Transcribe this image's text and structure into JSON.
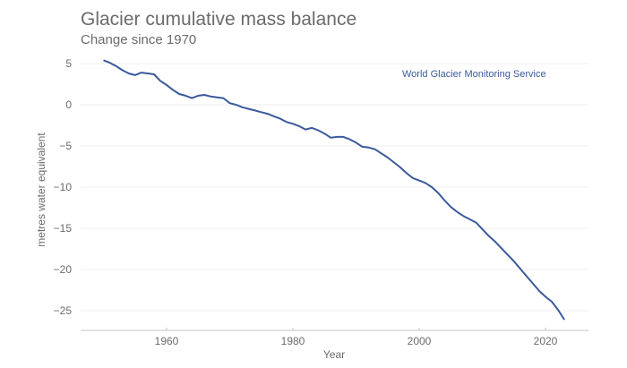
{
  "chart_data": {
    "type": "line",
    "title": "Glacier cumulative mass balance",
    "subtitle": "Change since 1970",
    "xlabel": "Year",
    "ylabel": "metres water equivalent",
    "annotation": "World Glacier Monitoring Service",
    "xlim": [
      1948,
      2027
    ],
    "ylim": [
      -28,
      6
    ],
    "x_ticks": [
      1960,
      1980,
      2000,
      2020
    ],
    "y_ticks": [
      5,
      0,
      -5,
      -10,
      -15,
      -20,
      -25
    ],
    "y_tick_labels": [
      "5",
      "0",
      "−5",
      "−10",
      "−15",
      "−20",
      "−25"
    ],
    "grid": true,
    "line_color": "#3a5a9b",
    "series": [
      {
        "name": "Cumulative mass balance",
        "x": [
          1950,
          1951,
          1952,
          1953,
          1954,
          1955,
          1956,
          1957,
          1958,
          1959,
          1960,
          1961,
          1962,
          1963,
          1964,
          1965,
          1966,
          1967,
          1968,
          1969,
          1970,
          1971,
          1972,
          1973,
          1974,
          1975,
          1976,
          1977,
          1978,
          1979,
          1980,
          1981,
          1982,
          1983,
          1984,
          1985,
          1986,
          1987,
          1988,
          1989,
          1990,
          1991,
          1992,
          1993,
          1994,
          1995,
          1996,
          1997,
          1998,
          1999,
          2000,
          2001,
          2002,
          2003,
          2004,
          2005,
          2006,
          2007,
          2008,
          2009,
          2010,
          2011,
          2012,
          2013,
          2014,
          2015,
          2016,
          2017,
          2018,
          2019,
          2020,
          2021,
          2022,
          2023
        ],
        "values": [
          5.4,
          5.1,
          4.7,
          4.2,
          3.8,
          3.6,
          3.9,
          3.8,
          3.7,
          2.9,
          2.4,
          1.8,
          1.3,
          1.1,
          0.8,
          1.1,
          1.2,
          1.0,
          0.9,
          0.8,
          0.2,
          0,
          -0.3,
          -0.5,
          -0.7,
          -0.9,
          -1.1,
          -1.4,
          -1.7,
          -2.1,
          -2.3,
          -2.6,
          -3.0,
          -2.8,
          -3.1,
          -3.5,
          -4.0,
          -3.9,
          -3.9,
          -4.2,
          -4.6,
          -5.1,
          -5.2,
          -5.4,
          -5.9,
          -6.4,
          -7.0,
          -7.6,
          -8.3,
          -8.9,
          -9.2,
          -9.5,
          -10.0,
          -10.7,
          -11.6,
          -12.4,
          -13.0,
          -13.5,
          -13.9,
          -14.3,
          -15.1,
          -15.9,
          -16.6,
          -17.4,
          -18.2,
          -19.0,
          -19.9,
          -20.8,
          -21.7,
          -22.6,
          -23.3,
          -23.9,
          -24.9,
          -26.1
        ]
      }
    ]
  }
}
